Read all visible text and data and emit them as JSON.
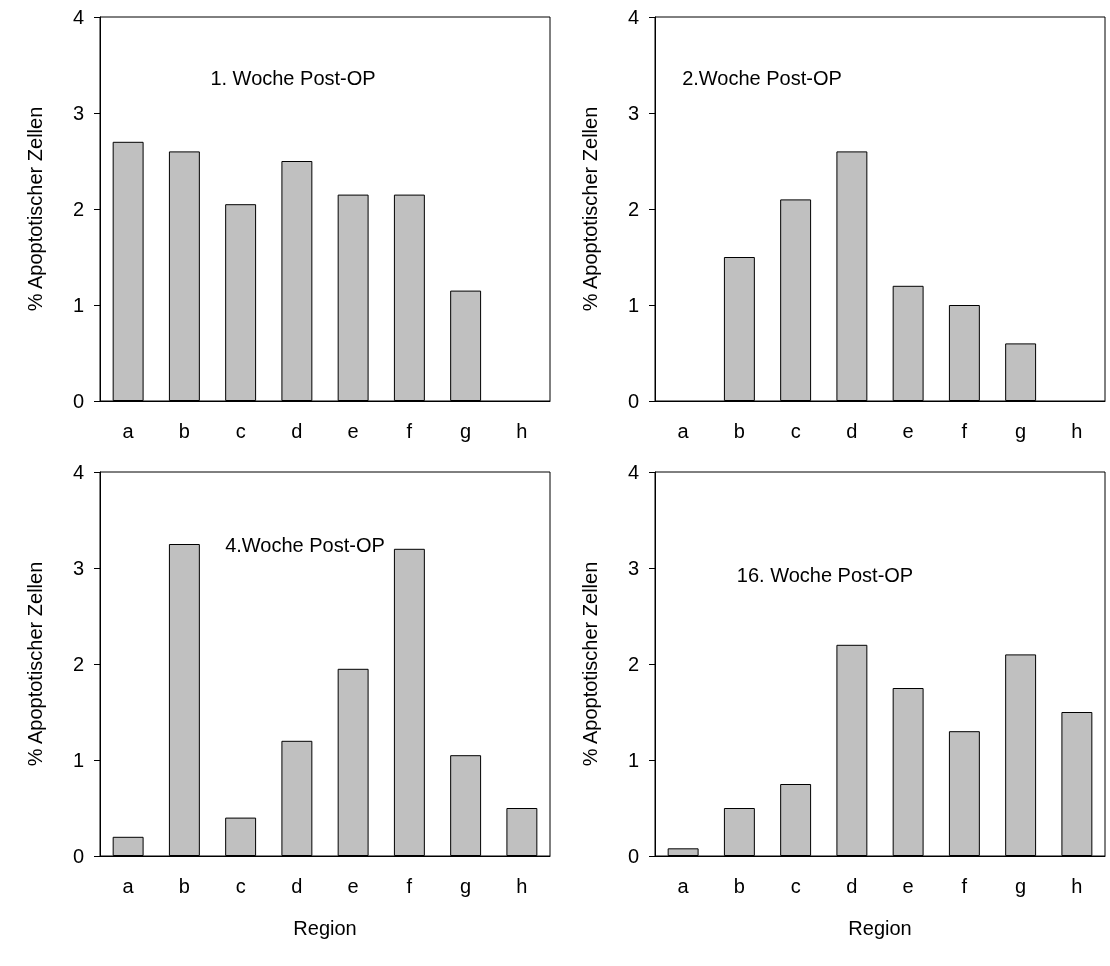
{
  "chart_data": [
    {
      "type": "bar",
      "title": "1. Woche Post-OP",
      "ylabel": "% Apoptotischer Zellen",
      "categories": [
        "a",
        "b",
        "c",
        "d",
        "e",
        "f",
        "g",
        "h"
      ],
      "values": [
        2.7,
        2.6,
        2.05,
        2.5,
        2.15,
        2.15,
        1.15,
        0
      ],
      "color": "#c0c0c0",
      "ylim": [
        0,
        4
      ],
      "yticks": [
        0,
        1,
        2,
        3,
        4
      ]
    },
    {
      "type": "bar",
      "title": "2.Woche Post-OP",
      "ylabel": "% Apoptotischer Zellen",
      "categories": [
        "a",
        "b",
        "c",
        "d",
        "e",
        "f",
        "g",
        "h"
      ],
      "values": [
        0,
        1.5,
        2.1,
        2.6,
        1.2,
        1.0,
        0.6,
        0
      ],
      "color": "#c0c0c0",
      "ylim": [
        0,
        4
      ],
      "yticks": [
        0,
        1,
        2,
        3,
        4
      ]
    },
    {
      "type": "bar",
      "title": "4.Woche Post-OP",
      "ylabel": "% Apoptotischer Zellen",
      "xlabel": "Region",
      "categories": [
        "a",
        "b",
        "c",
        "d",
        "e",
        "f",
        "g",
        "h"
      ],
      "values": [
        0.2,
        3.25,
        0.4,
        1.2,
        1.95,
        3.2,
        1.05,
        0.5
      ],
      "color": "#c0c0c0",
      "ylim": [
        0,
        4
      ],
      "yticks": [
        0,
        1,
        2,
        3,
        4
      ]
    },
    {
      "type": "bar",
      "title": "16. Woche Post-OP",
      "ylabel": "% Apoptotischer Zellen",
      "xlabel": "Region",
      "categories": [
        "a",
        "b",
        "c",
        "d",
        "e",
        "f",
        "g",
        "h"
      ],
      "values": [
        0.08,
        0.5,
        0.75,
        2.2,
        1.75,
        1.3,
        2.1,
        1.5
      ],
      "color": "#c0c0c0",
      "ylim": [
        0,
        4
      ],
      "yticks": [
        0,
        1,
        2,
        3,
        4
      ]
    }
  ]
}
